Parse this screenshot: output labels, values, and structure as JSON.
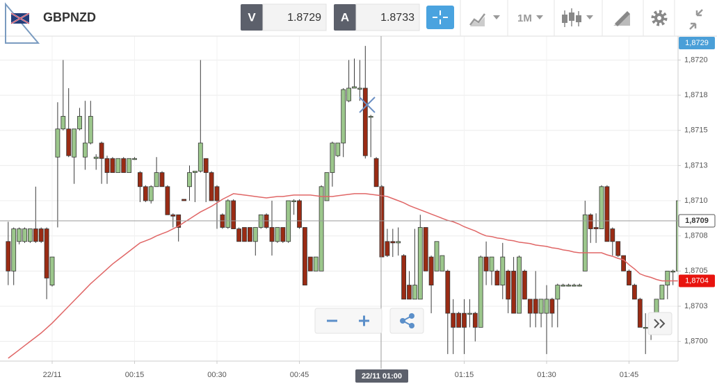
{
  "header": {
    "symbol": "GBPNZD",
    "sell_label": "V",
    "sell_price": "1.8729",
    "buy_label": "A",
    "buy_price": "1.8733",
    "timeframe": "1M"
  },
  "chart_data": {
    "type": "candlestick",
    "categories": [
      null,
      null,
      null,
      null,
      null,
      null,
      null,
      null,
      "22/11",
      null,
      null,
      null,
      null,
      null,
      null,
      null,
      null,
      null,
      null,
      null,
      null,
      null,
      null,
      "00:15",
      null,
      null,
      null,
      null,
      null,
      null,
      null,
      null,
      null,
      null,
      null,
      null,
      null,
      null,
      "00:30",
      null,
      null,
      null,
      null,
      null,
      null,
      null,
      null,
      null,
      null,
      null,
      null,
      null,
      null,
      "00:45",
      null,
      null,
      null,
      null,
      null,
      null,
      null,
      null,
      null,
      null,
      null,
      null,
      null,
      null,
      null,
      null,
      null,
      null,
      null,
      null,
      null,
      null,
      null,
      null,
      null,
      null,
      null,
      null,
      null,
      "01:15",
      null,
      null,
      null,
      null,
      null,
      null,
      null,
      null,
      null,
      null,
      null,
      null,
      null,
      null,
      "01:30",
      null,
      null,
      null,
      null,
      null,
      null,
      null,
      null,
      null,
      null,
      null,
      null,
      null,
      null,
      "01:45",
      null,
      null,
      null,
      null,
      null,
      null,
      null,
      null,
      null
    ],
    "open": [
      1.87071,
      1.8705,
      1.87071,
      1.87071,
      1.87071,
      1.8708,
      1.8708,
      1.8708,
      1.8704,
      1.87131,
      1.87151,
      1.87151,
      1.87131,
      1.87151,
      1.87131,
      1.87141,
      1.8713,
      1.87141,
      1.8713,
      1.8713,
      1.8712,
      1.8713,
      1.8712,
      1.8713,
      1.8712,
      1.8711,
      1.871,
      1.8711,
      1.8712,
      1.8711,
      1.8709,
      1.8709,
      1.87101,
      1.8711,
      1.8712,
      1.87121,
      1.8713,
      1.8712,
      1.8711,
      1.8709,
      1.87081,
      1.871,
      1.8708,
      1.87081,
      1.87081,
      1.87071,
      1.87081,
      1.8709,
      1.87081,
      1.87071,
      1.87081,
      1.87071,
      1.871,
      1.871,
      1.87081,
      1.8706,
      1.8705,
      1.8705,
      1.871,
      1.8712,
      1.87132,
      1.87141,
      1.87171,
      1.8718,
      1.8718,
      1.8718,
      1.8716,
      1.8713,
      1.8711,
      1.87071,
      1.87071,
      1.8707,
      1.87061,
      1.8704,
      1.8703,
      1.8703,
      1.87081,
      1.8706,
      1.8705,
      1.8705,
      1.8705,
      1.8702,
      1.8702,
      1.8702,
      1.8702,
      1.8702,
      1.8701,
      1.8706,
      1.8705,
      1.8705,
      1.8704,
      1.8705,
      1.8705,
      1.8702,
      1.8705,
      1.8703,
      1.8703,
      1.8702,
      1.8702,
      1.8703,
      1.8703,
      1.8704,
      1.8704,
      1.8704,
      1.8704,
      1.8705,
      1.8709,
      1.87081,
      1.8708,
      1.8711,
      1.8708,
      1.87071,
      1.87061,
      1.8705,
      1.8704,
      1.8703,
      1.8701,
      1.8701,
      1.8702,
      1.8703,
      1.8704,
      1.8705,
      1.8705
    ],
    "high": [
      1.87085,
      1.87081,
      1.87081,
      1.87081,
      1.8708,
      1.8711,
      1.87081,
      1.87081,
      1.8706,
      1.8717,
      1.872,
      1.8718,
      1.87151,
      1.87166,
      1.87171,
      1.87171,
      1.87133,
      1.87142,
      1.87132,
      1.87131,
      1.8713,
      1.87131,
      1.8713,
      1.87131,
      1.87121,
      1.87111,
      1.87111,
      1.87131,
      1.87121,
      1.87111,
      1.87091,
      1.8709,
      1.87101,
      1.87125,
      1.87121,
      1.872,
      1.8713,
      1.87121,
      1.87111,
      1.87091,
      1.87101,
      1.87101,
      1.87081,
      1.87081,
      1.87081,
      1.87081,
      1.8709,
      1.87091,
      1.871,
      1.87081,
      1.87081,
      1.871,
      1.87101,
      1.87101,
      1.87081,
      1.8706,
      1.8706,
      1.87111,
      1.8712,
      1.87142,
      1.87141,
      1.8718,
      1.872,
      1.87201,
      1.872,
      1.8721,
      1.87161,
      1.87131,
      1.87111,
      1.8708,
      1.8708,
      1.87081,
      1.87062,
      1.8705,
      1.8708,
      1.8709,
      1.87081,
      1.87061,
      1.87071,
      1.87061,
      1.87051,
      1.8703,
      1.87021,
      1.8703,
      1.8703,
      1.87021,
      1.87061,
      1.87071,
      1.8706,
      1.87051,
      1.8707,
      1.87051,
      1.8706,
      1.87061,
      1.87051,
      1.8703,
      1.8705,
      1.8703,
      1.8704,
      1.87031,
      1.87041,
      1.87041,
      1.87041,
      1.87041,
      1.87041,
      1.871,
      1.87091,
      1.87091,
      1.87111,
      1.87111,
      1.87081,
      1.87071,
      1.87061,
      1.87051,
      1.87041,
      1.87031,
      1.8702,
      1.8702,
      1.8703,
      1.8704,
      1.8705,
      1.87051,
      1.8711
    ],
    "low": [
      1.8704,
      1.8704,
      1.87069,
      1.8707,
      1.8707,
      1.8707,
      1.8707,
      1.8703,
      1.87039,
      1.87081,
      1.8715,
      1.87131,
      1.87112,
      1.8715,
      1.87122,
      1.8714,
      1.87122,
      1.87112,
      1.87112,
      1.8712,
      1.8712,
      1.8712,
      1.8712,
      1.87129,
      1.87099,
      1.87099,
      1.87098,
      1.8711,
      1.8711,
      1.8709,
      1.87081,
      1.87071,
      1.871,
      1.871,
      1.87099,
      1.8712,
      1.87099,
      1.871,
      1.8708,
      1.8708,
      1.8708,
      1.8708,
      1.87071,
      1.87071,
      1.87071,
      1.87061,
      1.8708,
      1.8708,
      1.87061,
      1.8707,
      1.8707,
      1.8707,
      1.8709,
      1.8708,
      1.8704,
      1.8705,
      1.8705,
      1.8705,
      1.871,
      1.8711,
      1.87131,
      1.87131,
      1.8717,
      1.8718,
      1.87171,
      1.8713,
      1.87131,
      1.8711,
      1.8706,
      1.8706,
      1.8706,
      1.87061,
      1.8703,
      1.8703,
      1.8703,
      1.8703,
      1.8705,
      1.8702,
      1.8705,
      1.8705,
      1.86991,
      1.86991,
      1.8701,
      1.86991,
      1.8701,
      1.87,
      1.8701,
      1.8704,
      1.8704,
      1.8704,
      1.8703,
      1.8702,
      1.8702,
      1.8702,
      1.8703,
      1.8701,
      1.8701,
      1.8701,
      1.86991,
      1.8701,
      1.8701,
      1.87039,
      1.87039,
      1.87039,
      1.87039,
      1.8705,
      1.8707,
      1.8707,
      1.8708,
      1.87071,
      1.87061,
      1.8706,
      1.8705,
      1.8704,
      1.8703,
      1.8701,
      1.86991,
      1.87001,
      1.8702,
      1.8703,
      1.8703,
      1.8704,
      1.8705
    ],
    "close": [
      1.8705,
      1.8708,
      1.8708,
      1.8708,
      1.8708,
      1.87071,
      1.87071,
      1.87045,
      1.8706,
      1.87151,
      1.8716,
      1.87132,
      1.87151,
      1.8716,
      1.87141,
      1.8716,
      1.87131,
      1.8713,
      1.8712,
      1.8712,
      1.8713,
      1.8712,
      1.8713,
      1.8713,
      1.8711,
      1.871,
      1.8711,
      1.8712,
      1.8711,
      1.8709,
      1.87089,
      1.87081,
      1.871,
      1.8712,
      1.87121,
      1.87141,
      1.8712,
      1.871,
      1.871,
      1.87081,
      1.871,
      1.8708,
      1.87071,
      1.87071,
      1.87071,
      1.87081,
      1.8709,
      1.87081,
      1.87071,
      1.87081,
      1.87071,
      1.871,
      1.871,
      1.87081,
      1.8704,
      1.8705,
      1.8706,
      1.8711,
      1.8712,
      1.87141,
      1.87141,
      1.87179,
      1.8718,
      1.87181,
      1.8718,
      1.87132,
      1.8716,
      1.8711,
      1.8706,
      1.87061,
      1.8707,
      1.87071,
      1.8703,
      1.8703,
      1.8704,
      1.87081,
      1.8705,
      1.8704,
      1.87071,
      1.87061,
      1.8702,
      1.8701,
      1.8701,
      1.8701,
      1.8702,
      1.8701,
      1.8706,
      1.8705,
      1.8706,
      1.8704,
      1.8706,
      1.8703,
      1.8702,
      1.8706,
      1.8703,
      1.8702,
      1.8702,
      1.8703,
      1.8703,
      1.8702,
      1.8704,
      1.8704,
      1.8704,
      1.8704,
      1.8704,
      1.8709,
      1.8708,
      1.8708,
      1.8711,
      1.87071,
      1.87071,
      1.87061,
      1.8705,
      1.8704,
      1.8703,
      1.8701,
      1.8701,
      1.8702,
      1.8703,
      1.8704,
      1.8705,
      1.8705,
      1.871
    ],
    "up_color": "#9cc78c",
    "down_color": "#9a2b14",
    "moving_average": {
      "color": "#e06666",
      "values": [
        1.86988,
        1.86991,
        1.86994,
        1.86997,
        1.87,
        1.87003,
        1.87006,
        1.870095,
        1.87013,
        1.87017,
        1.87021,
        1.87025,
        1.87029,
        1.87033,
        1.87037,
        1.87041,
        1.870445,
        1.87048,
        1.870515,
        1.87055,
        1.87058,
        1.87061,
        1.87064,
        1.87067,
        1.8707,
        1.870715,
        1.87073,
        1.87075,
        1.870765,
        1.87078,
        1.8708,
        1.87082,
        1.870845,
        1.87087,
        1.870895,
        1.87092,
        1.87094,
        1.87096,
        1.870985,
        1.87101,
        1.87103,
        1.87105,
        1.871045,
        1.87104,
        1.871035,
        1.87103,
        1.871025,
        1.87102,
        1.871025,
        1.87103,
        1.87103,
        1.871035,
        1.87104,
        1.87104,
        1.87104,
        1.87104,
        1.871035,
        1.87103,
        1.87103,
        1.87103,
        1.871035,
        1.87104,
        1.871045,
        1.87105,
        1.87105,
        1.87105,
        1.871045,
        1.87104,
        1.871035,
        1.87103,
        1.871015,
        1.871,
        1.870985,
        1.870965,
        1.87095,
        1.870935,
        1.87092,
        1.870905,
        1.87089,
        1.870875,
        1.87086,
        1.87085,
        1.870835,
        1.870815,
        1.8708,
        1.870785,
        1.870765,
        1.87075,
        1.870745,
        1.870735,
        1.87073,
        1.87072,
        1.870715,
        1.870705,
        1.8707,
        1.870695,
        1.870685,
        1.87068,
        1.870675,
        1.870665,
        1.87066,
        1.87065,
        1.870645,
        1.870635,
        1.87063,
        1.87063,
        1.87063,
        1.87063,
        1.87063,
        1.870615,
        1.870605,
        1.87059,
        1.87058,
        1.870545,
        1.870515,
        1.87048,
        1.870465,
        1.870455,
        1.87044,
        1.87043,
        1.87043,
        1.87043,
        1.87043
      ]
    },
    "ylim": [
      1.86986,
      1.87217
    ],
    "yticks": [
      {
        "value": 1.87,
        "label": "1,8700"
      },
      {
        "value": 1.87025,
        "label": "1,8703"
      },
      {
        "value": 1.8705,
        "label": "1,8705"
      },
      {
        "value": 1.87075,
        "label": "1,8708"
      },
      {
        "value": 1.871,
        "label": "1,8710"
      },
      {
        "value": 1.87125,
        "label": "1,8713"
      },
      {
        "value": 1.8715,
        "label": "1,8715"
      },
      {
        "value": 1.87175,
        "label": "1,8718"
      },
      {
        "value": 1.872,
        "label": "1,8720"
      }
    ],
    "grid": true,
    "price_tags": [
      {
        "value": 1.8729,
        "label": "1,8729",
        "color": "#4a9fd8"
      },
      {
        "value": 1.87043,
        "label": "1,8704",
        "color": "#e8140f"
      }
    ],
    "crosshair": {
      "price": {
        "value": 1.870857,
        "label": "1,8709"
      },
      "time_label": "22/11 01:00"
    }
  }
}
